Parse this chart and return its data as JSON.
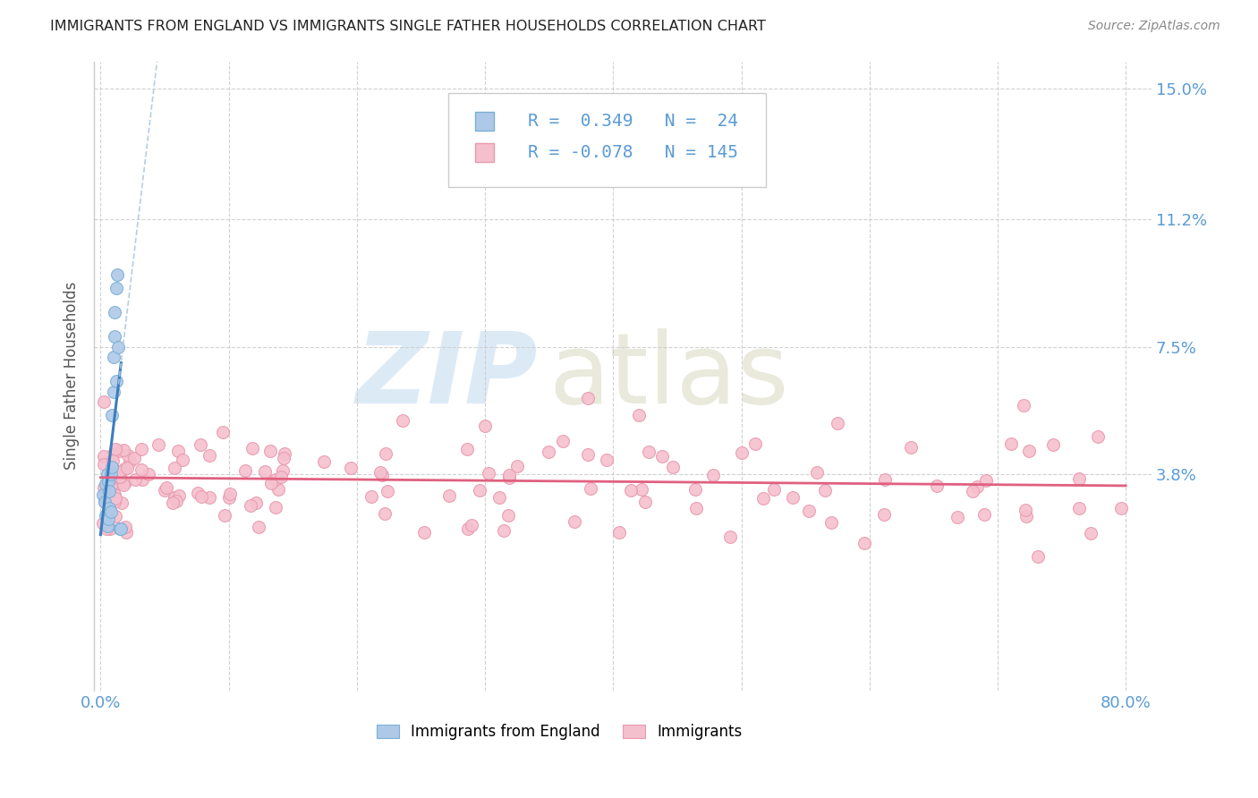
{
  "title": "IMMIGRANTS FROM ENGLAND VS IMMIGRANTS SINGLE FATHER HOUSEHOLDS CORRELATION CHART",
  "source": "Source: ZipAtlas.com",
  "ylabel": "Single Father Households",
  "xlim": [
    -0.005,
    0.82
  ],
  "ylim": [
    -0.025,
    0.158
  ],
  "ytick_values": [
    0.038,
    0.075,
    0.112,
    0.15
  ],
  "ytick_labels": [
    "3.8%",
    "7.5%",
    "11.2%",
    "15.0%"
  ],
  "xtick_positions": [
    0.0,
    0.1,
    0.2,
    0.3,
    0.4,
    0.5,
    0.6,
    0.7,
    0.8
  ],
  "legend1_label": "Immigrants from England",
  "legend2_label": "Immigrants",
  "legend1_R": "0.349",
  "legend1_N": "24",
  "legend2_R": "-0.078",
  "legend2_N": "145",
  "blue_fill": "#aec9e8",
  "blue_edge": "#7aafd4",
  "pink_fill": "#f5c0ce",
  "pink_edge": "#e899ae",
  "blue_line_color": "#3a7dbf",
  "pink_line_color": "#e06080",
  "dashed_line_color": "#b0c8e0",
  "background_color": "#ffffff",
  "grid_color": "#cccccc",
  "axis_label_color": "#5b9bd5",
  "title_color": "#222222",
  "source_color": "#888888",
  "ylabel_color": "#555555"
}
